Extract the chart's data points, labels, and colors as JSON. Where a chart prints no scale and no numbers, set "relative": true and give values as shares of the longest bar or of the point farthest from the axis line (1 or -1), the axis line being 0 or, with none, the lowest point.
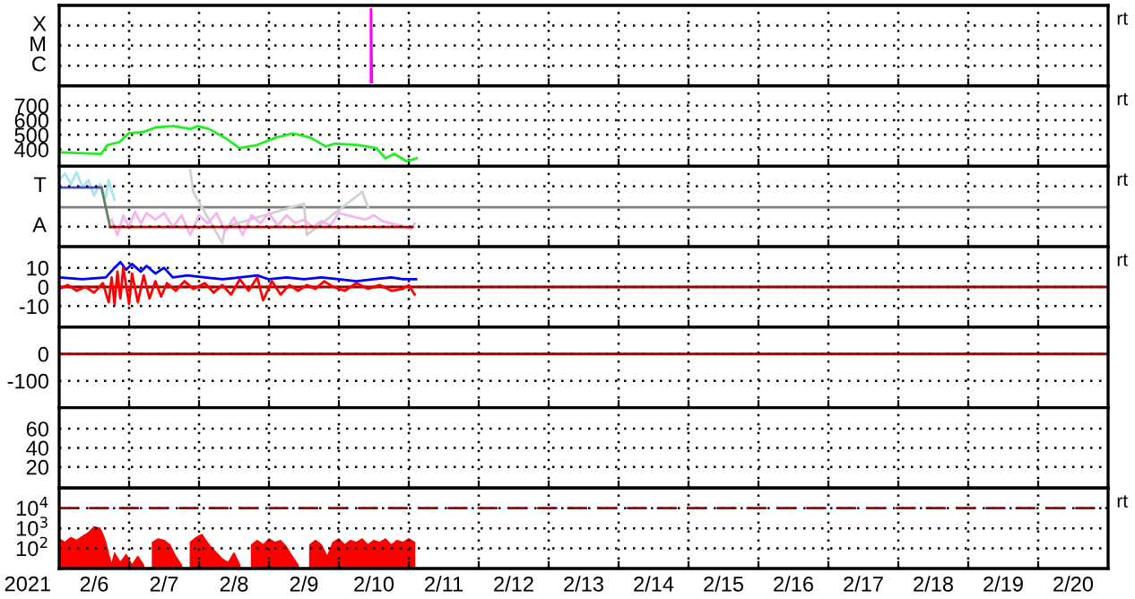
{
  "chart_data": [
    {
      "type": "line",
      "xlim": [
        "2021-02-06",
        "2021-02-21"
      ],
      "xticks": [
        {
          "value": "2021-02-07",
          "label": null
        },
        {
          "value": "2021-02-08",
          "label": null
        },
        {
          "value": "2021-02-09",
          "label": null
        },
        {
          "value": "2021-02-10",
          "label": null
        },
        {
          "value": "2021-02-11",
          "label": null
        },
        {
          "value": "2021-02-12",
          "label": null
        },
        {
          "value": "2021-02-13",
          "label": null
        },
        {
          "value": "2021-02-14",
          "label": null
        },
        {
          "value": "2021-02-15",
          "label": null
        },
        {
          "value": "2021-02-16",
          "label": null
        },
        {
          "value": "2021-02-17",
          "label": null
        },
        {
          "value": "2021-02-18",
          "label": null
        },
        {
          "value": "2021-02-19",
          "label": null
        },
        {
          "value": "2021-02-20",
          "label": null
        }
      ],
      "relative": true,
      "grid": true,
      "tick_labels": false,
      "annotations": [
        "rt",
        "C",
        "M",
        "X"
      ],
      "series": [
        {
          "color": "#ff00ff",
          "x": [
            "2021-02-10T11:00",
            "2021-02-10T11:00",
            "2021-02-10T11:20"
          ],
          "values": [
            0,
            1,
            0
          ]
        }
      ]
    },
    {
      "type": "line",
      "xlim": [
        "2021-02-06",
        "2021-02-21"
      ],
      "xticks": [
        {
          "value": "2021-02-07",
          "label": null
        },
        {
          "value": "2021-02-08",
          "label": null
        },
        {
          "value": "2021-02-09",
          "label": null
        },
        {
          "value": "2021-02-10",
          "label": null
        },
        {
          "value": "2021-02-11",
          "label": null
        },
        {
          "value": "2021-02-12",
          "label": null
        },
        {
          "value": "2021-02-13",
          "label": null
        },
        {
          "value": "2021-02-14",
          "label": null
        },
        {
          "value": "2021-02-15",
          "label": null
        },
        {
          "value": "2021-02-16",
          "label": null
        },
        {
          "value": "2021-02-17",
          "label": null
        },
        {
          "value": "2021-02-18",
          "label": null
        },
        {
          "value": "2021-02-19",
          "label": null
        },
        {
          "value": "2021-02-20",
          "label": null
        }
      ],
      "ylim": [
        285,
        835
      ],
      "yticks": [
        400,
        500,
        600,
        700
      ],
      "grid": true,
      "tick_labels": "y",
      "annotations": [
        "rt"
      ],
      "series": [
        {
          "color": "#22ee22",
          "x": [
            "2021-02-06T00:10",
            "2021-02-06T14:30",
            "2021-02-06T16:30",
            "2021-02-06T20:40",
            "2021-02-06T23:50",
            "2021-02-07T05:00",
            "2021-02-07T09:00",
            "2021-02-07T15:10",
            "2021-02-07T21:20",
            "2021-02-07T23:30",
            "2021-02-08T03:30",
            "2021-02-08T09:40",
            "2021-02-08T13:50",
            "2021-02-08T19:50",
            "2021-02-09T02:10",
            "2021-02-09T08:10",
            "2021-02-09T14:20",
            "2021-02-09T19:30",
            "2021-02-09T22:40",
            "2021-02-10T06:50",
            "2021-02-10T12:50",
            "2021-02-10T16:00",
            "2021-02-10T19:00",
            "2021-02-10T23:10",
            "2021-02-11T02:40"
          ],
          "values": [
            380,
            370,
            430,
            450,
            510,
            520,
            550,
            560,
            540,
            560,
            540,
            470,
            410,
            430,
            480,
            510,
            480,
            420,
            440,
            430,
            410,
            340,
            370,
            320,
            340
          ]
        }
      ]
    },
    {
      "type": "line",
      "xlim": [
        "2021-02-06",
        "2021-02-21"
      ],
      "xticks": [
        {
          "value": "2021-02-07",
          "label": null
        },
        {
          "value": "2021-02-08",
          "label": null
        },
        {
          "value": "2021-02-09",
          "label": null
        },
        {
          "value": "2021-02-10",
          "label": null
        },
        {
          "value": "2021-02-11",
          "label": null
        },
        {
          "value": "2021-02-12",
          "label": null
        },
        {
          "value": "2021-02-13",
          "label": null
        },
        {
          "value": "2021-02-14",
          "label": null
        },
        {
          "value": "2021-02-15",
          "label": null
        },
        {
          "value": "2021-02-16",
          "label": null
        },
        {
          "value": "2021-02-17",
          "label": null
        },
        {
          "value": "2021-02-18",
          "label": null
        },
        {
          "value": "2021-02-19",
          "label": null
        },
        {
          "value": "2021-02-20",
          "label": null
        }
      ],
      "relative": true,
      "grid": true,
      "tick_labels": false,
      "annotations": [
        "rt",
        "A",
        "T"
      ],
      "ref_lines": [
        {
          "axis": "y",
          "value": 0.49,
          "color": "#808080"
        }
      ],
      "series": [
        {
          "color": "#d0d0d0",
          "x": [
            "2021-02-07T21:00",
            "2021-02-07T22:00",
            "2021-02-08T08:00",
            "2021-02-08T09:00",
            "2021-02-09T12:00",
            "2021-02-09T13:00",
            "2021-02-10T08:00",
            "2021-02-10T10:00"
          ],
          "values": [
            1.0,
            0.7,
            0.0,
            0.22,
            0.54,
            0.11,
            0.7,
            0.49
          ]
        },
        {
          "color": "#a8e4f4",
          "x": [
            "2021-02-06T00:00",
            "2021-02-06T02:00",
            "2021-02-06T04:00",
            "2021-02-06T06:00",
            "2021-02-06T08:00",
            "2021-02-06T10:00",
            "2021-02-06T12:00",
            "2021-02-06T14:00",
            "2021-02-06T16:00",
            "2021-02-06T17:00",
            "2021-02-06T19:00"
          ],
          "values": [
            0.86,
            0.95,
            0.81,
            0.97,
            0.76,
            0.86,
            0.65,
            0.81,
            0.62,
            0.86,
            0.59
          ]
        },
        {
          "color": "#f4b4f0",
          "x": [
            "2021-02-06T18:00",
            "2021-02-06T20:00",
            "2021-02-06T22:00",
            "2021-02-07T00:00",
            "2021-02-07T02:00",
            "2021-02-07T04:00",
            "2021-02-07T06:00",
            "2021-02-07T09:00",
            "2021-02-07T12:00",
            "2021-02-07T15:00",
            "2021-02-07T18:00",
            "2021-02-07T21:00",
            "2021-02-08T00:00",
            "2021-02-08T03:00",
            "2021-02-08T06:00",
            "2021-02-08T09:00",
            "2021-02-08T12:00",
            "2021-02-08T15:00",
            "2021-02-08T18:00",
            "2021-02-08T21:00",
            "2021-02-09T00:00",
            "2021-02-09T03:00",
            "2021-02-09T06:00",
            "2021-02-09T09:00",
            "2021-02-09T12:00",
            "2021-02-09T15:00",
            "2021-02-09T18:00",
            "2021-02-09T21:00",
            "2021-02-10T00:00",
            "2021-02-10T03:00",
            "2021-02-10T06:00",
            "2021-02-10T09:00",
            "2021-02-10T12:00",
            "2021-02-10T15:00",
            "2021-02-10T18:00",
            "2021-02-10T21:00",
            "2021-02-11T01:00",
            "2021-02-11T02:00"
          ],
          "values": [
            0.32,
            0.11,
            0.38,
            0.22,
            0.43,
            0.27,
            0.41,
            0.32,
            0.41,
            0.22,
            0.38,
            0.11,
            0.38,
            0.27,
            0.41,
            0.16,
            0.35,
            0.11,
            0.38,
            0.27,
            0.41,
            0.24,
            0.38,
            0.27,
            0.32,
            0.22,
            0.3,
            0.24,
            0.41,
            0.38,
            0.35,
            0.32,
            0.38,
            0.3,
            0.27,
            0.24,
            0.19,
            0.27
          ]
        },
        {
          "color": "#4848d8",
          "x": [
            "2021-02-06T00:00",
            "2021-02-06T14:30"
          ],
          "values": [
            0.76,
            0.76
          ]
        },
        {
          "color": "#608060",
          "x": [
            "2021-02-06T14:30",
            "2021-02-06T17:30"
          ],
          "values": [
            0.76,
            0.22
          ]
        },
        {
          "color": "#c00000",
          "x": [
            "2021-02-06T17:30",
            "2021-02-11T01:15"
          ],
          "values": [
            0.22,
            0.22
          ]
        }
      ]
    },
    {
      "type": "line",
      "xlim": [
        "2021-02-06",
        "2021-02-21"
      ],
      "xticks": [
        {
          "value": "2021-02-07",
          "label": null
        },
        {
          "value": "2021-02-08",
          "label": null
        },
        {
          "value": "2021-02-09",
          "label": null
        },
        {
          "value": "2021-02-10",
          "label": null
        },
        {
          "value": "2021-02-11",
          "label": null
        },
        {
          "value": "2021-02-12",
          "label": null
        },
        {
          "value": "2021-02-13",
          "label": null
        },
        {
          "value": "2021-02-14",
          "label": null
        },
        {
          "value": "2021-02-15",
          "label": null
        },
        {
          "value": "2021-02-16",
          "label": null
        },
        {
          "value": "2021-02-17",
          "label": null
        },
        {
          "value": "2021-02-18",
          "label": null
        },
        {
          "value": "2021-02-19",
          "label": null
        },
        {
          "value": "2021-02-20",
          "label": null
        }
      ],
      "ylim": [
        -21,
        21
      ],
      "yticks": [
        -10,
        0,
        10
      ],
      "grid": true,
      "tick_labels": "y",
      "annotations": [
        "rt"
      ],
      "ref_lines": [
        {
          "axis": "y",
          "value": 0,
          "color": "#a00000"
        }
      ],
      "series": [
        {
          "color": "#0000ff",
          "x": [
            "2021-02-06T00:00",
            "2021-02-06T08:00",
            "2021-02-06T16:00",
            "2021-02-06T19:00",
            "2021-02-06T21:00",
            "2021-02-06T23:00",
            "2021-02-07T01:00",
            "2021-02-07T04:00",
            "2021-02-07T06:00",
            "2021-02-07T09:00",
            "2021-02-07T12:00",
            "2021-02-07T15:00",
            "2021-02-07T20:00",
            "2021-02-08T02:00",
            "2021-02-08T08:00",
            "2021-02-08T14:00",
            "2021-02-08T20:00",
            "2021-02-09T00:00",
            "2021-02-09T06:00",
            "2021-02-09T12:00",
            "2021-02-09T18:00",
            "2021-02-10T00:00",
            "2021-02-10T06:00",
            "2021-02-10T12:00",
            "2021-02-10T18:00",
            "2021-02-10T22:00",
            "2021-02-11T02:30"
          ],
          "values": [
            5,
            4,
            5,
            10,
            13,
            9,
            12,
            8,
            11,
            7,
            10,
            5,
            6,
            5,
            4,
            5,
            6,
            4,
            5,
            4,
            5,
            4,
            3,
            4,
            5,
            4,
            4
          ]
        },
        {
          "color": "#ff0000",
          "x": [
            "2021-02-06T00:00",
            "2021-02-06T03:00",
            "2021-02-06T06:00",
            "2021-02-06T09:00",
            "2021-02-06T12:00",
            "2021-02-06T15:00",
            "2021-02-06T17:00",
            "2021-02-06T18:00",
            "2021-02-06T19:00",
            "2021-02-06T20:00",
            "2021-02-06T21:00",
            "2021-02-06T22:00",
            "2021-02-07T00:00",
            "2021-02-07T01:00",
            "2021-02-07T03:00",
            "2021-02-07T05:00",
            "2021-02-07T07:00",
            "2021-02-07T09:00",
            "2021-02-07T11:00",
            "2021-02-07T13:00",
            "2021-02-07T16:00",
            "2021-02-07T19:00",
            "2021-02-07T22:00",
            "2021-02-08T02:00",
            "2021-02-08T05:00",
            "2021-02-08T08:00",
            "2021-02-08T11:00",
            "2021-02-08T14:00",
            "2021-02-08T17:00",
            "2021-02-08T20:00",
            "2021-02-08T22:00",
            "2021-02-09T01:00",
            "2021-02-09T04:00",
            "2021-02-09T07:00",
            "2021-02-09T10:00",
            "2021-02-09T13:00",
            "2021-02-09T16:00",
            "2021-02-09T19:00",
            "2021-02-09T22:00",
            "2021-02-10T02:00",
            "2021-02-10T06:00",
            "2021-02-10T10:00",
            "2021-02-10T14:00",
            "2021-02-10T18:00",
            "2021-02-10T22:00",
            "2021-02-11T00:00",
            "2021-02-11T02:00"
          ],
          "values": [
            -1,
            1,
            -2,
            0,
            -3,
            2,
            -8,
            5,
            -9,
            8,
            -6,
            10,
            -9,
            7,
            -8,
            6,
            -6,
            3,
            -5,
            2,
            -2,
            3,
            -1,
            2,
            -3,
            1,
            -4,
            4,
            -2,
            5,
            -7,
            3,
            -4,
            1,
            -2,
            1,
            -1,
            3,
            0,
            -2,
            2,
            -1,
            1,
            -2,
            -1,
            1,
            -4
          ]
        }
      ]
    },
    {
      "type": "line",
      "xlim": [
        "2021-02-06",
        "2021-02-21"
      ],
      "xticks": [
        {
          "value": "2021-02-07",
          "label": null
        },
        {
          "value": "2021-02-08",
          "label": null
        },
        {
          "value": "2021-02-09",
          "label": null
        },
        {
          "value": "2021-02-10",
          "label": null
        },
        {
          "value": "2021-02-11",
          "label": null
        },
        {
          "value": "2021-02-12",
          "label": null
        },
        {
          "value": "2021-02-13",
          "label": null
        },
        {
          "value": "2021-02-14",
          "label": null
        },
        {
          "value": "2021-02-15",
          "label": null
        },
        {
          "value": "2021-02-16",
          "label": null
        },
        {
          "value": "2021-02-17",
          "label": null
        },
        {
          "value": "2021-02-18",
          "label": null
        },
        {
          "value": "2021-02-19",
          "label": null
        },
        {
          "value": "2021-02-20",
          "label": null
        }
      ],
      "ylim": [
        -200,
        100
      ],
      "yticks": [
        -100,
        0
      ],
      "grid": true,
      "tick_labels": "y",
      "ref_lines": [
        {
          "axis": "y",
          "value": 0,
          "color": "#a00000"
        }
      ]
    },
    {
      "type": "line",
      "xlim": [
        "2021-02-06",
        "2021-02-21"
      ],
      "xticks": [
        {
          "value": "2021-02-07",
          "label": null
        },
        {
          "value": "2021-02-08",
          "label": null
        },
        {
          "value": "2021-02-09",
          "label": null
        },
        {
          "value": "2021-02-10",
          "label": null
        },
        {
          "value": "2021-02-11",
          "label": null
        },
        {
          "value": "2021-02-12",
          "label": null
        },
        {
          "value": "2021-02-13",
          "label": null
        },
        {
          "value": "2021-02-14",
          "label": null
        },
        {
          "value": "2021-02-15",
          "label": null
        },
        {
          "value": "2021-02-16",
          "label": null
        },
        {
          "value": "2021-02-17",
          "label": null
        },
        {
          "value": "2021-02-18",
          "label": null
        },
        {
          "value": "2021-02-19",
          "label": null
        },
        {
          "value": "2021-02-20",
          "label": null
        }
      ],
      "ylim": [
        -2,
        82
      ],
      "yticks": [
        20,
        40,
        60
      ],
      "grid": true,
      "tick_labels": "y"
    },
    {
      "type": "area",
      "xlabel": "2021",
      "xlim": [
        "2021-02-06",
        "2021-02-21"
      ],
      "xticks": [
        {
          "value": "2021-02-06T12:00",
          "label": "2/6"
        },
        {
          "value": "2021-02-07",
          "label": null
        },
        {
          "value": "2021-02-07T12:00",
          "label": "2/7"
        },
        {
          "value": "2021-02-08",
          "label": null
        },
        {
          "value": "2021-02-08T12:00",
          "label": "2/8"
        },
        {
          "value": "2021-02-09",
          "label": null
        },
        {
          "value": "2021-02-09T12:00",
          "label": "2/9"
        },
        {
          "value": "2021-02-10",
          "label": null
        },
        {
          "value": "2021-02-10T12:00",
          "label": "2/10"
        },
        {
          "value": "2021-02-11",
          "label": null
        },
        {
          "value": "2021-02-11T12:00",
          "label": "2/11"
        },
        {
          "value": "2021-02-12",
          "label": null
        },
        {
          "value": "2021-02-12T12:00",
          "label": "2/12"
        },
        {
          "value": "2021-02-13",
          "label": null
        },
        {
          "value": "2021-02-13T12:00",
          "label": "2/13"
        },
        {
          "value": "2021-02-14",
          "label": null
        },
        {
          "value": "2021-02-14T12:00",
          "label": "2/14"
        },
        {
          "value": "2021-02-15",
          "label": null
        },
        {
          "value": "2021-02-15T12:00",
          "label": "2/15"
        },
        {
          "value": "2021-02-16",
          "label": null
        },
        {
          "value": "2021-02-16T12:00",
          "label": "2/16"
        },
        {
          "value": "2021-02-17",
          "label": null
        },
        {
          "value": "2021-02-17T12:00",
          "label": "2/17"
        },
        {
          "value": "2021-02-18",
          "label": null
        },
        {
          "value": "2021-02-18T12:00",
          "label": "2/18"
        },
        {
          "value": "2021-02-19",
          "label": null
        },
        {
          "value": "2021-02-19T12:00",
          "label": "2/19"
        },
        {
          "value": "2021-02-20",
          "label": null
        },
        {
          "value": "2021-02-20T12:00",
          "label": "2/20"
        }
      ],
      "log": true,
      "ylim": [
        10,
        100000
      ],
      "yticks": [
        {
          "value": 100,
          "label": "10$^{2}$"
        },
        {
          "value": 1000,
          "label": "10$^{3}$"
        },
        {
          "value": 10000,
          "label": "10$^{4}$"
        }
      ],
      "grid": true,
      "annotations": [
        "rt"
      ],
      "ref_lines": [
        {
          "axis": "y",
          "value": 10000,
          "color": "#a00000",
          "line_style": "dashed"
        }
      ],
      "series": [
        {
          "color": "#ff0000",
          "x": [
            "2021-02-06T00:00",
            "2021-02-06T02:00",
            "2021-02-06T04:00",
            "2021-02-06T06:00",
            "2021-02-06T08:00",
            "2021-02-06T10:00",
            "2021-02-06T12:00",
            "2021-02-06T14:00",
            "2021-02-06T15:00",
            "2021-02-06T16:00",
            "2021-02-06T17:00",
            "2021-02-06T18:00",
            "2021-02-06T19:00",
            "2021-02-06T21:00",
            "2021-02-06T23:00",
            "2021-02-07T01:00",
            "2021-02-07T03:00",
            "2021-02-07T05:00",
            "2021-02-07T06:00",
            "2021-02-07T08:00",
            "2021-02-07T10:00",
            "2021-02-07T12:00",
            "2021-02-07T14:00",
            "2021-02-07T16:00",
            "2021-02-07T18:00",
            "2021-02-07T19:00",
            "2021-02-07T21:00",
            "2021-02-07T23:00",
            "2021-02-08T01:00",
            "2021-02-08T02:00",
            "2021-02-08T04:00",
            "2021-02-08T06:00",
            "2021-02-08T08:00",
            "2021-02-08T10:00",
            "2021-02-08T12:00",
            "2021-02-08T14:00",
            "2021-02-08T16:00",
            "2021-02-08T18:00",
            "2021-02-08T20:00",
            "2021-02-08T22:00",
            "2021-02-09T00:00",
            "2021-02-09T02:00",
            "2021-02-09T04:00",
            "2021-02-09T06:00",
            "2021-02-09T08:00",
            "2021-02-09T10:00",
            "2021-02-09T12:00",
            "2021-02-09T14:00",
            "2021-02-09T16:00",
            "2021-02-09T18:00",
            "2021-02-09T20:00",
            "2021-02-09T22:00",
            "2021-02-10T00:00",
            "2021-02-10T02:00",
            "2021-02-10T04:00",
            "2021-02-10T06:00",
            "2021-02-10T08:00",
            "2021-02-10T10:00",
            "2021-02-10T12:00",
            "2021-02-10T14:00",
            "2021-02-10T16:00",
            "2021-02-10T18:00",
            "2021-02-10T20:00",
            "2021-02-10T22:00",
            "2021-02-11T00:00",
            "2021-02-11T02:00"
          ],
          "values": [
            300,
            200,
            350,
            250,
            400,
            600,
            1200,
            1000,
            500,
            200,
            50,
            15,
            60,
            20,
            50,
            15,
            40,
            15,
            null,
            200,
            300,
            250,
            150,
            40,
            15,
            null,
            200,
            350,
            500,
            300,
            120,
            60,
            30,
            20,
            60,
            15,
            null,
            150,
            250,
            150,
            300,
            200,
            250,
            120,
            40,
            15,
            null,
            150,
            250,
            150,
            40,
            200,
            300,
            150,
            250,
            200,
            300,
            150,
            250,
            200,
            300,
            150,
            250,
            200,
            300,
            200
          ]
        }
      ]
    }
  ]
}
